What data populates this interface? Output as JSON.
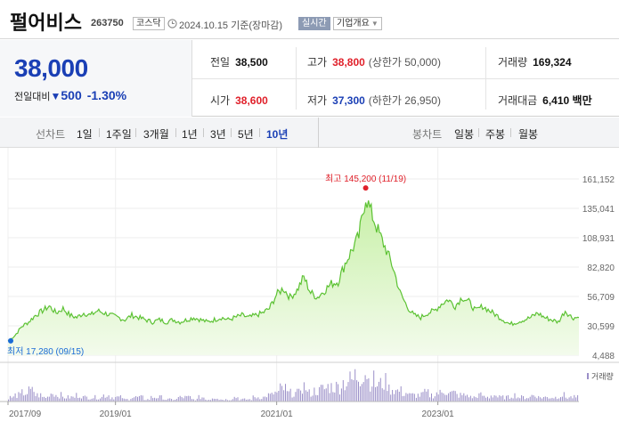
{
  "header": {
    "name": "펄어비스",
    "code": "263750",
    "market": "코스닥",
    "date": "2024.10.15",
    "basis": "기준(장마감)",
    "realtime_label": "실시간",
    "company_label": "기업개요",
    "icons": {
      "clock": "clock-icon",
      "dropdown": "chevron-down-icon"
    }
  },
  "summary": {
    "price": "38,000",
    "change_label": "전일대비",
    "change_value": "500",
    "change_pct": "-1.30%",
    "prev_label": "전일",
    "prev": "38,500",
    "high_label": "고가",
    "high": "38,800",
    "upper_limit": "(상한가 50,000)",
    "volume_label": "거래량",
    "volume": "169,324",
    "open_label": "시가",
    "open": "38,600",
    "low_label": "저가",
    "low": "37,300",
    "lower_limit": "(하한가 26,950)",
    "amount_label": "거래대금",
    "amount": "6,410",
    "amount_unit": "백만"
  },
  "periodbar": {
    "line_label": "선차트",
    "periods": [
      "1일",
      "1주일",
      "3개월",
      "1년",
      "3년",
      "5년",
      "10년"
    ],
    "active_period": "10년",
    "candle_label": "봉차트",
    "candles": [
      "일봉",
      "주봉",
      "월봉"
    ]
  },
  "chart_data": {
    "type": "area",
    "y_ticks": [
      "161,152",
      "135,041",
      "108,931",
      "82,820",
      "56,709",
      "30,599",
      "4,488"
    ],
    "ylim": [
      4488,
      161152
    ],
    "x_ticks": [
      "2017/09",
      "2019/01",
      "2021/01",
      "2023/01"
    ],
    "x_range": [
      "2017-09",
      "2024-10"
    ],
    "max_label": "최고 145,200 (11/19)",
    "min_label": "최저 17,280 (09/15)",
    "max_value": 145200,
    "min_value": 17280,
    "volume_label": "거래량",
    "colors": {
      "line": "#5cc233",
      "fill_top": "#c8f0a8",
      "fill_bottom": "#f3fbec",
      "max_marker": "#e0202a",
      "min_marker": "#1a6bd6",
      "volume": "#9b8fc8"
    },
    "series_monthly": [
      17280,
      22000,
      30000,
      34000,
      40000,
      44000,
      48000,
      42000,
      46000,
      40000,
      38000,
      42000,
      40000,
      44000,
      42000,
      40000,
      38000,
      36000,
      40000,
      38000,
      36000,
      34000,
      36000,
      34000,
      36000,
      34000,
      36000,
      38000,
      36000,
      34000,
      36000,
      38000,
      36000,
      38000,
      40000,
      38000,
      40000,
      42000,
      46000,
      58000,
      64000,
      56000,
      62000,
      74000,
      60000,
      56000,
      62000,
      68000,
      70000,
      86000,
      98000,
      110000,
      145200,
      128000,
      112000,
      98000,
      82000,
      60000,
      48000,
      40000,
      38000,
      42000,
      44000,
      50000,
      54000,
      48000,
      56000,
      52000,
      44000,
      48000,
      44000,
      40000,
      36000,
      32000,
      34000,
      36000,
      38000,
      42000,
      38000,
      36000,
      34000,
      44000,
      38000,
      38000
    ],
    "volume_monthly": [
      2,
      3,
      4,
      5,
      3,
      2,
      4,
      3,
      2,
      2,
      3,
      2,
      2,
      2,
      3,
      2,
      2,
      1,
      2,
      2,
      1,
      2,
      2,
      1,
      1,
      2,
      2,
      1,
      2,
      1,
      2,
      1,
      1,
      2,
      1,
      1,
      2,
      2,
      3,
      4,
      6,
      4,
      4,
      7,
      4,
      5,
      6,
      7,
      7,
      9,
      10,
      12,
      14,
      10,
      8,
      9,
      6,
      5,
      4,
      3,
      3,
      4,
      3,
      4,
      5,
      4,
      3,
      3,
      2,
      3,
      2,
      3,
      2,
      2,
      3,
      2,
      2,
      3,
      2,
      2,
      2,
      3,
      2,
      2
    ]
  }
}
